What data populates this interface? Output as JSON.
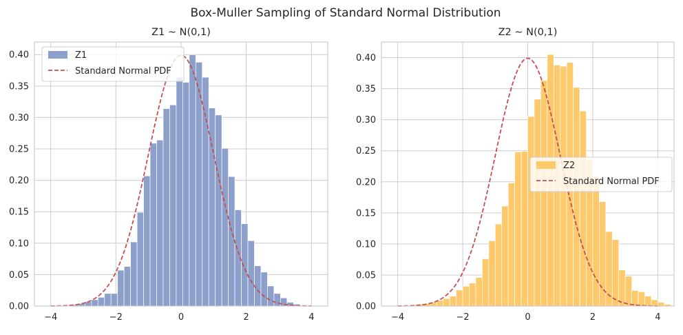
{
  "figure_title": "Box-Muller Sampling of Standard Normal Distribution",
  "chart_data": [
    {
      "type": "bar",
      "title": "Z1 ~ N(0,1)",
      "xlabel": "",
      "ylabel": "",
      "xlim": [
        -4.5,
        4.5
      ],
      "ylim": [
        0,
        0.42
      ],
      "xticks": [
        -4,
        -2,
        0,
        2,
        4
      ],
      "xtick_labels": [
        "−4",
        "−2",
        "0",
        "2",
        "4"
      ],
      "yticks": [
        0.0,
        0.05,
        0.1,
        0.15,
        0.2,
        0.25,
        0.3,
        0.35,
        0.4
      ],
      "ytick_labels": [
        "0.00",
        "0.05",
        "0.10",
        "0.15",
        "0.20",
        "0.25",
        "0.30",
        "0.35",
        "0.40"
      ],
      "grid": true,
      "legend_position": "top-left",
      "histogram": {
        "name": "Z1",
        "color": "#8da0cb",
        "bin_start": -3.35,
        "bin_width": 0.2,
        "values": [
          0.002,
          0.004,
          0.007,
          0.01,
          0.014,
          0.02,
          0.02,
          0.057,
          0.063,
          0.102,
          0.149,
          0.207,
          0.259,
          0.264,
          0.314,
          0.32,
          0.364,
          0.356,
          0.4,
          0.388,
          0.364,
          0.315,
          0.304,
          0.251,
          0.206,
          0.153,
          0.131,
          0.104,
          0.064,
          0.054,
          0.032,
          0.02,
          0.013,
          0.006,
          0.003
        ]
      },
      "pdf_curve": {
        "name": "Standard Normal PDF",
        "color": "#c44e52",
        "x_range": [
          -4,
          4
        ]
      }
    },
    {
      "type": "bar",
      "title": "Z2 ~ N(0,1)",
      "xlabel": "",
      "ylabel": "",
      "xlim": [
        -4.5,
        4.5
      ],
      "ylim": [
        0,
        0.425
      ],
      "xticks": [
        -4,
        -2,
        0,
        2,
        4
      ],
      "xtick_labels": [
        "−4",
        "−2",
        "0",
        "2",
        "4"
      ],
      "yticks": [
        0.0,
        0.05,
        0.1,
        0.15,
        0.2,
        0.25,
        0.3,
        0.35,
        0.4
      ],
      "ytick_labels": [
        "0.00",
        "0.05",
        "0.10",
        "0.15",
        "0.20",
        "0.25",
        "0.30",
        "0.35",
        "0.40"
      ],
      "grid": true,
      "legend_position": "center-right",
      "histogram": {
        "name": "Z2",
        "color": "#fdc96a",
        "bin_start": -3.6,
        "bin_width": 0.2,
        "values": [
          0.002,
          0.003,
          0.004,
          0.006,
          0.009,
          0.012,
          0.016,
          0.026,
          0.032,
          0.037,
          0.046,
          0.076,
          0.105,
          0.132,
          0.161,
          0.198,
          0.248,
          0.249,
          0.305,
          0.333,
          0.363,
          0.405,
          0.388,
          0.386,
          0.392,
          0.352,
          0.314,
          0.236,
          0.209,
          0.168,
          0.12,
          0.107,
          0.058,
          0.048,
          0.025,
          0.023,
          0.016,
          0.01,
          0.006,
          0.003,
          0.001
        ]
      },
      "pdf_curve": {
        "name": "Standard Normal PDF",
        "color": "#c44e52",
        "x_range": [
          -4,
          4
        ]
      }
    }
  ]
}
